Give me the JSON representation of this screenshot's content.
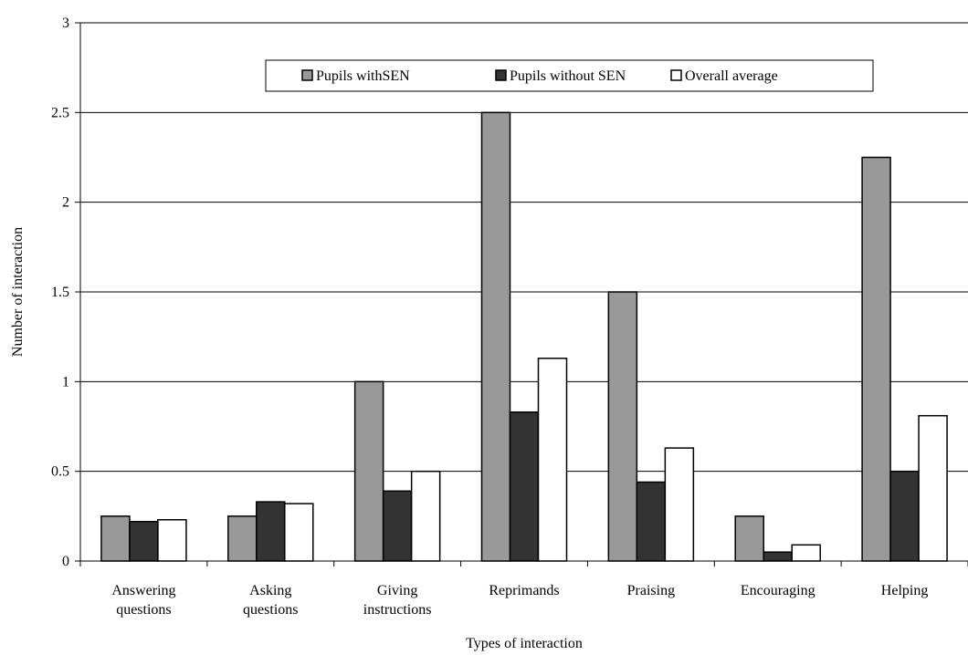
{
  "chart_data": {
    "type": "bar",
    "title": "",
    "xlabel": "Types of interaction",
    "ylabel": "Number of interaction",
    "ylim": [
      0,
      3
    ],
    "yticks": [
      0,
      0.5,
      1,
      1.5,
      2,
      2.5,
      3
    ],
    "ytick_labels": [
      "0",
      "0.5",
      "1",
      "1.5",
      "2",
      "2.5",
      "3"
    ],
    "grid": true,
    "legend_position": "top-center",
    "categories": [
      [
        "Answering",
        "questions"
      ],
      [
        "Asking",
        "questions"
      ],
      [
        "Giving",
        "instructions"
      ],
      [
        "Reprimands"
      ],
      [
        "Praising"
      ],
      [
        "Encouraging"
      ],
      [
        "Helping"
      ]
    ],
    "series": [
      {
        "name": "Pupils withSEN",
        "color": "#999999",
        "values": [
          0.25,
          0.25,
          1.0,
          2.5,
          1.5,
          0.25,
          2.25
        ]
      },
      {
        "name": "Pupils without SEN",
        "color": "#333333",
        "values": [
          0.22,
          0.33,
          0.39,
          0.83,
          0.44,
          0.05,
          0.5
        ]
      },
      {
        "name": "Overall average",
        "color": "#ffffff",
        "values": [
          0.23,
          0.32,
          0.5,
          1.13,
          0.63,
          0.09,
          0.81
        ]
      }
    ]
  }
}
